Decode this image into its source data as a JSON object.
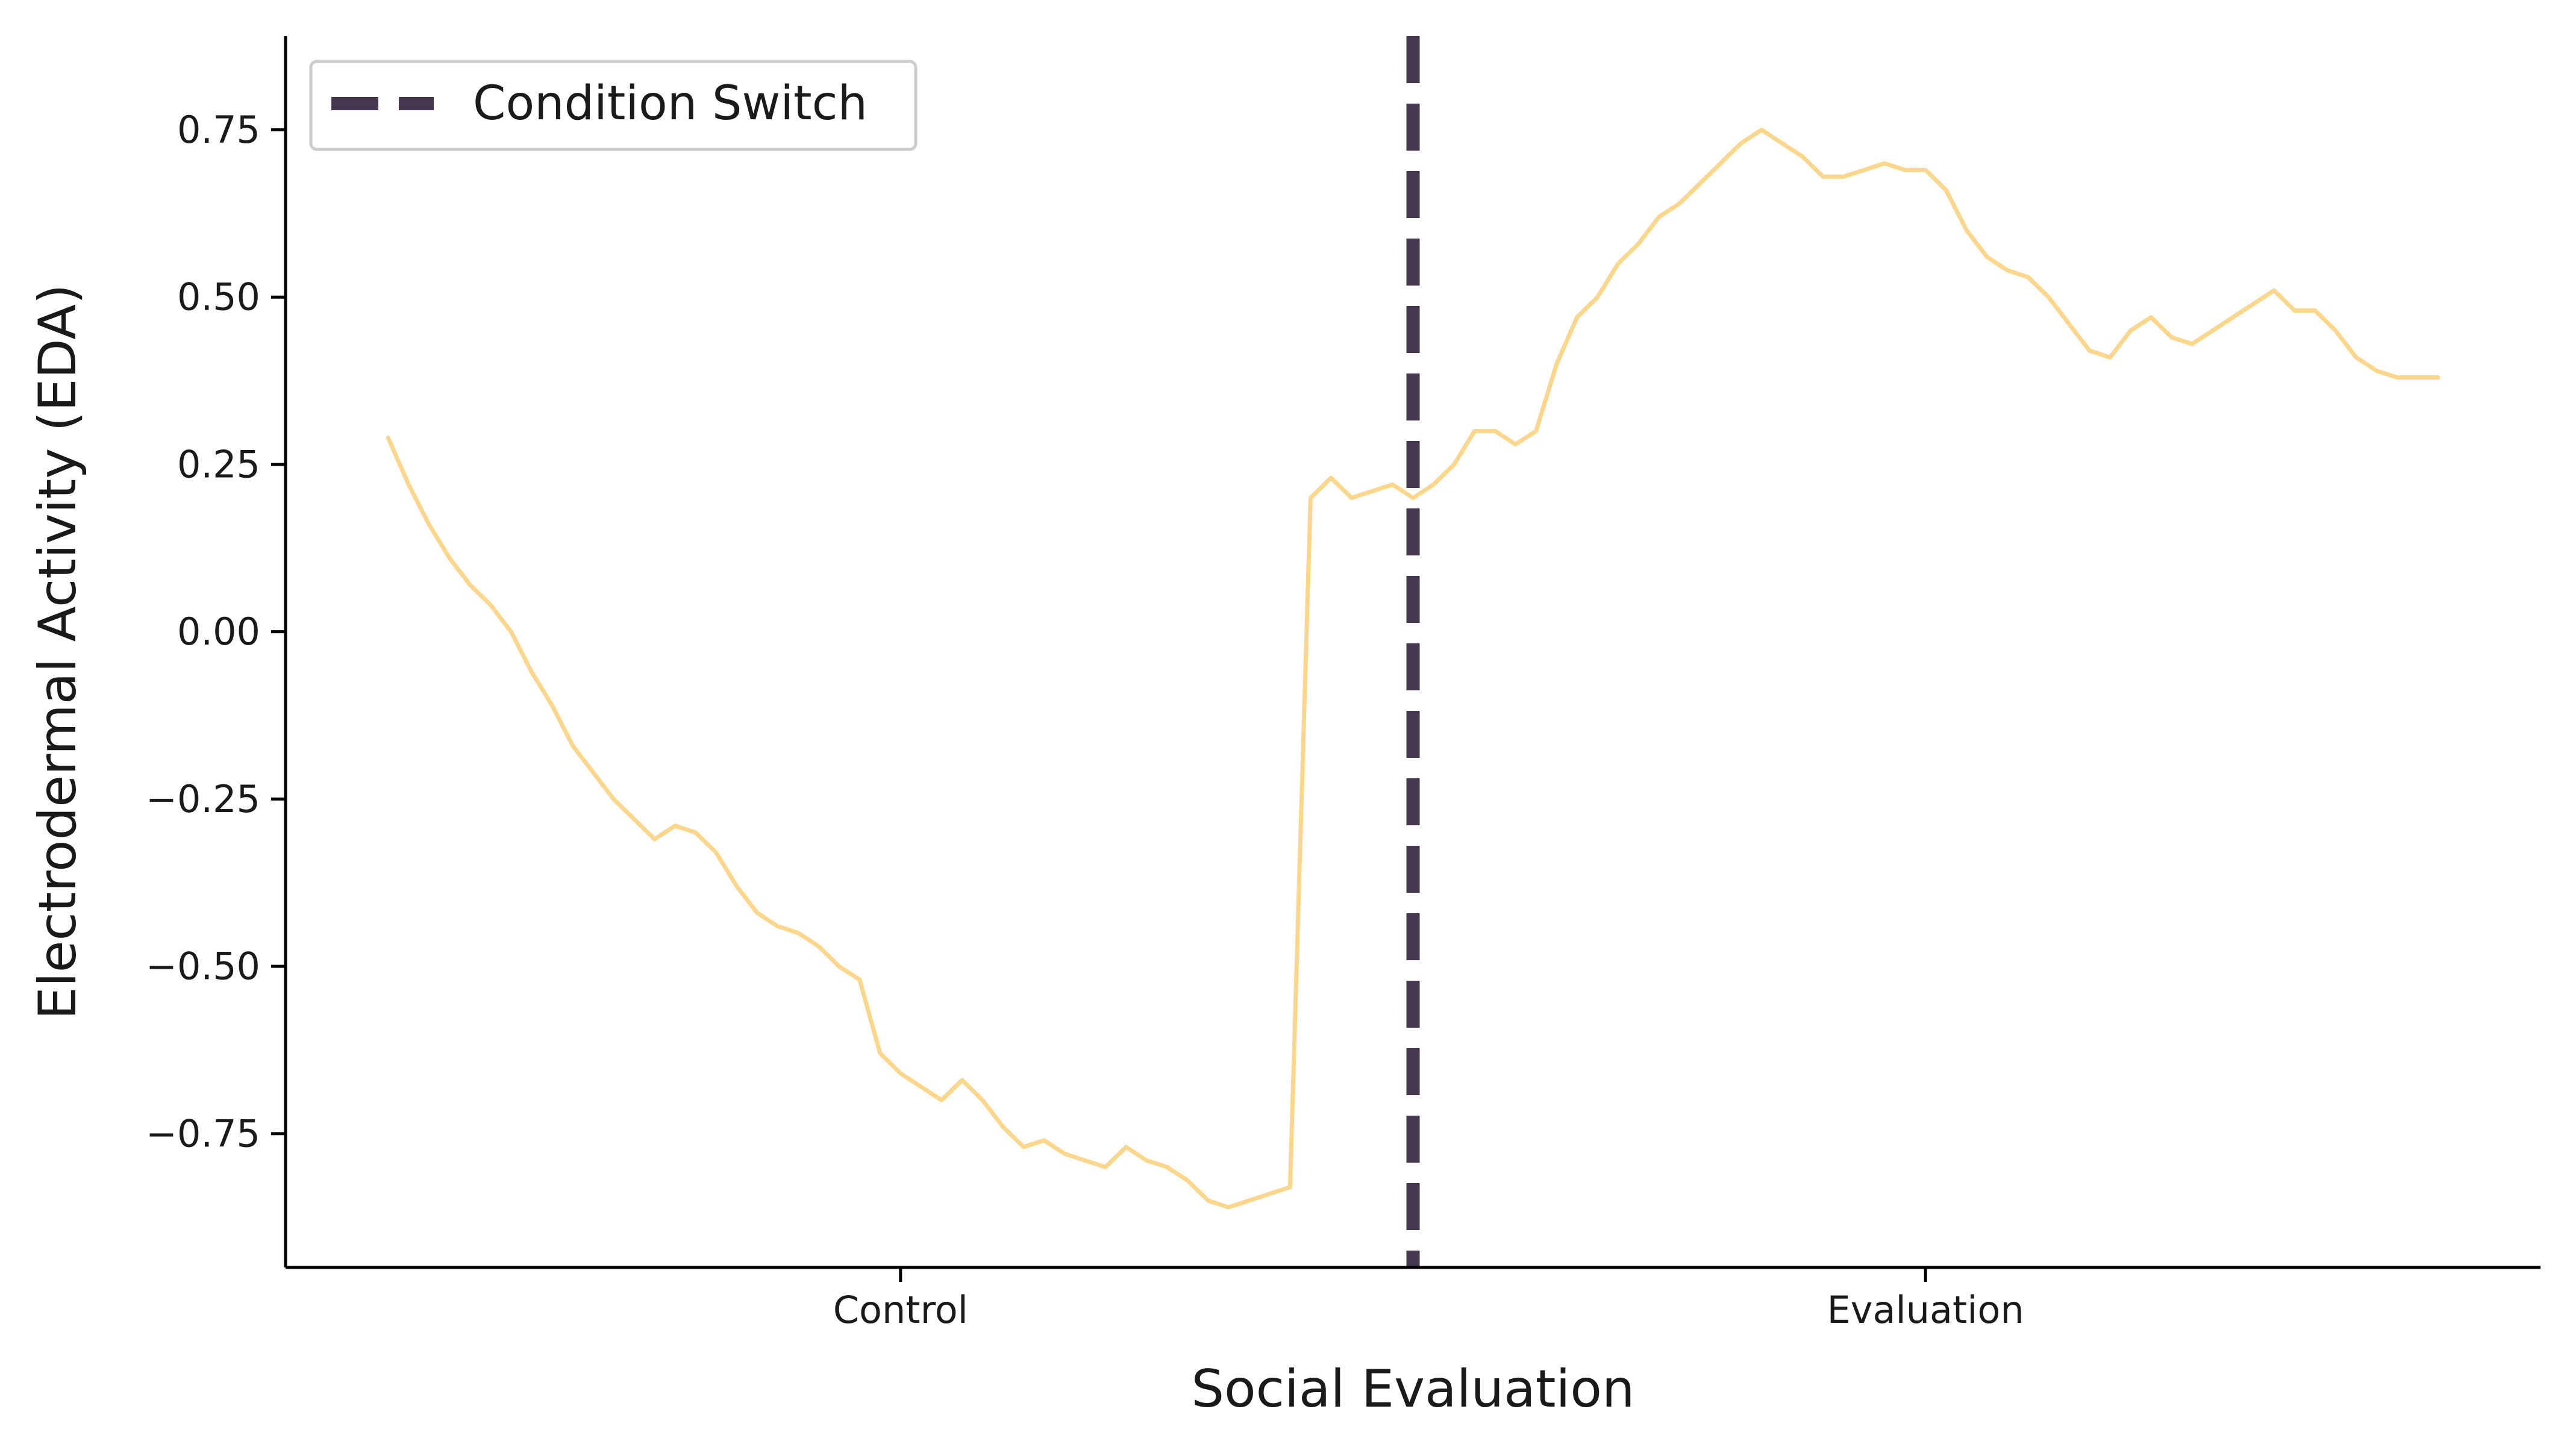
{
  "chart_data": {
    "type": "line",
    "title": "",
    "xlabel": "Social Evaluation",
    "ylabel": "Electrodermal Activity (EDA)",
    "x_categories": [
      "Control",
      "Evaluation"
    ],
    "x_tick_positions": [
      -0.5,
      0.5
    ],
    "xlim": [
      -1.1,
      1.1
    ],
    "ylim": [
      -0.95,
      0.89
    ],
    "yticks": [
      -0.75,
      -0.5,
      -0.25,
      0.0,
      0.25,
      0.5,
      0.75
    ],
    "ytick_labels": [
      "−0.75",
      "−0.50",
      "−0.25",
      "0.00",
      "0.25",
      "0.50",
      "0.75"
    ],
    "grid": false,
    "legend_position": "top-left",
    "legend": [
      {
        "label": "Condition Switch",
        "style": "dashed",
        "color": "#45374f"
      }
    ],
    "condition_switch_x": 0.0,
    "colors": {
      "eda_line": "#fdd68c",
      "condition_switch": "#45374f",
      "axis": "#000000"
    },
    "series": [
      {
        "x": [
          -1.0,
          -0.98,
          -0.96,
          -0.94,
          -0.92,
          -0.9,
          -0.88,
          -0.86,
          -0.84,
          -0.82,
          -0.8,
          -0.78,
          -0.76,
          -0.74,
          -0.72,
          -0.7,
          -0.68,
          -0.66,
          -0.64,
          -0.62,
          -0.6,
          -0.58,
          -0.56,
          -0.54,
          -0.52,
          -0.5,
          -0.48,
          -0.46,
          -0.44,
          -0.42,
          -0.4,
          -0.38,
          -0.36,
          -0.34,
          -0.32,
          -0.3,
          -0.28,
          -0.26,
          -0.24,
          -0.22,
          -0.2,
          -0.18,
          -0.16,
          -0.14,
          -0.12,
          -0.1,
          -0.08,
          -0.06,
          -0.04,
          -0.02,
          0.0,
          0.02,
          0.04,
          0.06,
          0.08,
          0.1,
          0.12,
          0.14,
          0.16,
          0.18,
          0.2,
          0.22,
          0.24,
          0.26,
          0.28,
          0.3,
          0.32,
          0.34,
          0.36,
          0.38,
          0.4,
          0.42,
          0.44,
          0.46,
          0.48,
          0.5,
          0.52,
          0.54,
          0.56,
          0.58,
          0.6,
          0.62,
          0.64,
          0.66,
          0.68,
          0.7,
          0.72,
          0.74,
          0.76,
          0.78,
          0.8,
          0.82,
          0.84,
          0.86,
          0.88,
          0.9,
          0.92,
          0.94,
          0.96,
          0.98,
          1.0
        ],
        "values": [
          0.29,
          0.22,
          0.16,
          0.11,
          0.07,
          0.04,
          0.0,
          -0.06,
          -0.11,
          -0.17,
          -0.21,
          -0.25,
          -0.28,
          -0.31,
          -0.29,
          -0.3,
          -0.33,
          -0.38,
          -0.42,
          -0.44,
          -0.45,
          -0.47,
          -0.5,
          -0.52,
          -0.63,
          -0.66,
          -0.68,
          -0.7,
          -0.67,
          -0.7,
          -0.74,
          -0.77,
          -0.76,
          -0.78,
          -0.79,
          -0.8,
          -0.77,
          -0.79,
          -0.8,
          -0.82,
          -0.85,
          -0.86,
          -0.85,
          -0.84,
          -0.83,
          0.2,
          0.23,
          0.2,
          0.21,
          0.22,
          0.2,
          0.22,
          0.25,
          0.3,
          0.3,
          0.28,
          0.3,
          0.4,
          0.47,
          0.5,
          0.55,
          0.58,
          0.62,
          0.64,
          0.67,
          0.7,
          0.73,
          0.75,
          0.73,
          0.71,
          0.68,
          0.68,
          0.69,
          0.7,
          0.69,
          0.69,
          0.66,
          0.6,
          0.56,
          0.54,
          0.53,
          0.5,
          0.46,
          0.42,
          0.41,
          0.45,
          0.47,
          0.44,
          0.43,
          0.45,
          0.47,
          0.49,
          0.51,
          0.48,
          0.48,
          0.45,
          0.41,
          0.39,
          0.38,
          0.38,
          0.38
        ]
      }
    ]
  }
}
